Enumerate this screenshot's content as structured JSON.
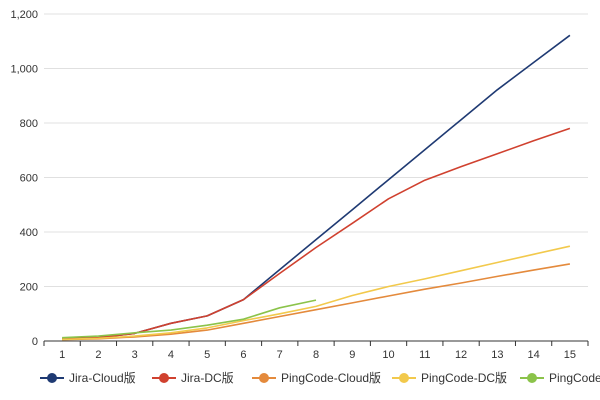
{
  "chart_data": {
    "type": "line",
    "title": "",
    "xlabel": "",
    "ylabel": "",
    "x": [
      1,
      2,
      3,
      4,
      5,
      6,
      7,
      8,
      9,
      10,
      11,
      12,
      13,
      14,
      15
    ],
    "ylim": [
      0,
      1200
    ],
    "yticks": [
      0,
      200,
      400,
      600,
      800,
      1000,
      1200
    ],
    "ytick_labels": [
      "0",
      "200",
      "400",
      "600",
      "800",
      "1,000",
      "1,200"
    ],
    "grid": "horizontal",
    "legend_position": "bottom",
    "series": [
      {
        "name": "Jira-Cloud版",
        "color": "#1f3a73",
        "values": [
          8,
          12,
          28,
          65,
          92,
          152,
          262,
          372,
          482,
          592,
          702,
          812,
          922,
          1022,
          1122
        ]
      },
      {
        "name": "Jira-DC版",
        "color": "#d0412f",
        "values": [
          8,
          12,
          28,
          65,
          92,
          152,
          248,
          343,
          432,
          522,
          590,
          640,
          687,
          735,
          780
        ]
      },
      {
        "name": "PingCode-Cloud版",
        "color": "#e48a3c",
        "values": [
          5,
          8,
          15,
          25,
          40,
          65,
          90,
          115,
          140,
          165,
          190,
          213,
          237,
          260,
          283
        ]
      },
      {
        "name": "PingCode-DC版",
        "color": "#f2c94c",
        "values": [
          6,
          10,
          18,
          30,
          48,
          75,
          100,
          127,
          167,
          200,
          228,
          258,
          288,
          318,
          348
        ]
      },
      {
        "name": "PingCode-Server",
        "color": "#8bc34a",
        "values": [
          12,
          18,
          30,
          40,
          58,
          80,
          122,
          150,
          null,
          null,
          null,
          null,
          null,
          null,
          null
        ]
      }
    ]
  }
}
